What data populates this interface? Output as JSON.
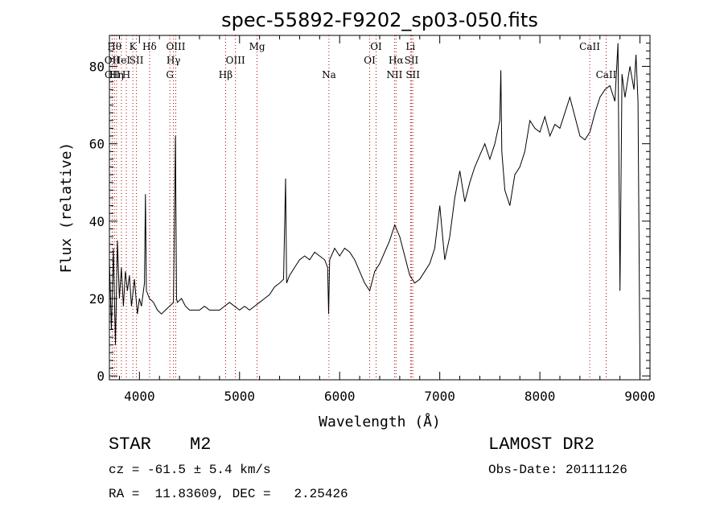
{
  "chart_data": {
    "type": "line",
    "title": "spec-55892-F9202_sp03-050.fits",
    "xlabel": "Wavelength (Å)",
    "ylabel": "Flux (relative)",
    "xlim": [
      3700,
      9100
    ],
    "ylim": [
      -1,
      88
    ],
    "x_ticks": [
      4000,
      5000,
      6000,
      7000,
      8000,
      9000
    ],
    "y_ticks": [
      0,
      20,
      40,
      60,
      80
    ],
    "grid": false,
    "line_color": "#000000",
    "marker_line_color": "#b00000",
    "series": [
      {
        "x": [
          3700,
          3720,
          3740,
          3760,
          3780,
          3800,
          3820,
          3840,
          3860,
          3880,
          3900,
          3920,
          3950,
          3980,
          4000,
          4020,
          4050,
          4060,
          4070,
          4100,
          4140,
          4180,
          4220,
          4260,
          4300,
          4340,
          4360,
          4370,
          4380,
          4420,
          4460,
          4500,
          4550,
          4600,
          4650,
          4700,
          4750,
          4800,
          4850,
          4900,
          4950,
          5000,
          5050,
          5100,
          5150,
          5200,
          5250,
          5300,
          5350,
          5400,
          5440,
          5460,
          5470,
          5500,
          5550,
          5600,
          5650,
          5700,
          5750,
          5800,
          5850,
          5880,
          5890,
          5900,
          5950,
          6000,
          6050,
          6100,
          6150,
          6200,
          6250,
          6300,
          6350,
          6400,
          6450,
          6500,
          6550,
          6600,
          6650,
          6700,
          6750,
          6800,
          6850,
          6900,
          6950,
          7000,
          7050,
          7100,
          7150,
          7200,
          7250,
          7300,
          7350,
          7400,
          7450,
          7500,
          7550,
          7600,
          7610,
          7620,
          7650,
          7700,
          7750,
          7800,
          7850,
          7900,
          7950,
          8000,
          8050,
          8100,
          8150,
          8200,
          8250,
          8300,
          8350,
          8400,
          8450,
          8500,
          8550,
          8600,
          8650,
          8700,
          8750,
          8780,
          8790,
          8800,
          8820,
          8850,
          8900,
          8940,
          8960,
          8980,
          9000
        ],
        "values": [
          30,
          12,
          33,
          8,
          35,
          20,
          28,
          18,
          27,
          22,
          26,
          18,
          25,
          16,
          20,
          18,
          24,
          47,
          22,
          20,
          19,
          17,
          16,
          17,
          18,
          19,
          62,
          20,
          19,
          20,
          18,
          17,
          17,
          17,
          18,
          17,
          17,
          17,
          18,
          19,
          18,
          17,
          18,
          17,
          18,
          19,
          20,
          21,
          23,
          24,
          25,
          51,
          24,
          26,
          28,
          30,
          31,
          30,
          32,
          31,
          30,
          28,
          16,
          30,
          33,
          31,
          33,
          32,
          30,
          27,
          24,
          22,
          27,
          29,
          32,
          35,
          39,
          36,
          31,
          26,
          24,
          25,
          27,
          29,
          33,
          44,
          30,
          36,
          46,
          53,
          45,
          50,
          54,
          57,
          60,
          56,
          60,
          66,
          79,
          58,
          48,
          44,
          52,
          54,
          58,
          66,
          64,
          63,
          67,
          62,
          65,
          64,
          68,
          72,
          67,
          62,
          61,
          63,
          68,
          72,
          74,
          75,
          71,
          86,
          55,
          22,
          78,
          72,
          80,
          74,
          83,
          71,
          0
        ]
      }
    ],
    "line_markers": [
      {
        "x": 3727,
        "label": "OII",
        "row": 1
      },
      {
        "x": 3729,
        "label": "OII",
        "row": 2
      },
      {
        "x": 3750,
        "label": "Hθ",
        "row": 0
      },
      {
        "x": 3771,
        "label": "Hη",
        "row": 2
      },
      {
        "x": 3820,
        "label": "HeI",
        "row": 1
      },
      {
        "x": 3869,
        "label": "H",
        "row": 2
      },
      {
        "x": 3934,
        "label": "K",
        "row": 0
      },
      {
        "x": 3970,
        "label": "SII",
        "row": 1
      },
      {
        "x": 4101,
        "label": "Hδ",
        "row": 0
      },
      {
        "x": 4304,
        "label": "G",
        "row": 2
      },
      {
        "x": 4340,
        "label": "Hγ",
        "row": 1
      },
      {
        "x": 4363,
        "label": "OIII",
        "row": 0
      },
      {
        "x": 4861,
        "label": "Hβ",
        "row": 2
      },
      {
        "x": 4959,
        "label": "OIII",
        "row": 1
      },
      {
        "x": 5175,
        "label": "Mg",
        "row": 0
      },
      {
        "x": 5893,
        "label": "Na",
        "row": 2
      },
      {
        "x": 6300,
        "label": "OI",
        "row": 1
      },
      {
        "x": 6364,
        "label": "OI",
        "row": 0
      },
      {
        "x": 6548,
        "label": "NII",
        "row": 2
      },
      {
        "x": 6563,
        "label": "Hα",
        "row": 1
      },
      {
        "x": 6708,
        "label": "Li",
        "row": 0
      },
      {
        "x": 6717,
        "label": "SII",
        "row": 1
      },
      {
        "x": 6731,
        "label": "SII",
        "row": 2
      },
      {
        "x": 8498,
        "label": "CaII",
        "row": 0
      },
      {
        "x": 8662,
        "label": "CaII",
        "row": 2
      }
    ]
  },
  "info": {
    "object_class": "STAR",
    "subclass": "M2",
    "survey": "LAMOST DR2",
    "redshift_line": "cz = -61.5 ± 5.4 km/s",
    "obs_date_line": "Obs-Date: 20111126",
    "coords_line": "RA =  11.83609, DEC =   2.25426"
  }
}
